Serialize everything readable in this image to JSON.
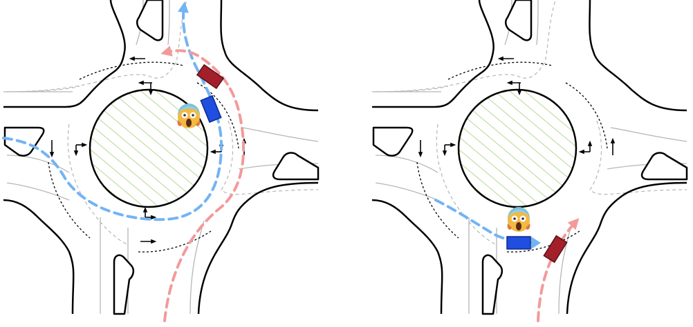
{
  "panels": [
    {
      "id": "left",
      "ego_path_color": "#73b3f5",
      "other_path_color": "#f29a9a",
      "ego_vehicle_color": "#1f4ee0",
      "other_vehicle_color": "#a3202a",
      "alarm_icon": "screaming-face-icon"
    },
    {
      "id": "right",
      "ego_path_color": "#73b3f5",
      "other_path_color": "#f29a9a",
      "ego_vehicle_color": "#1f4ee0",
      "other_vehicle_color": "#a3202a",
      "alarm_icon": "screaming-face-icon"
    }
  ],
  "colors": {
    "road_edge": "#000000",
    "lane_line": "#b5b5b5",
    "island_hatch": "#9fcf7a",
    "entry_line": "#000000"
  }
}
